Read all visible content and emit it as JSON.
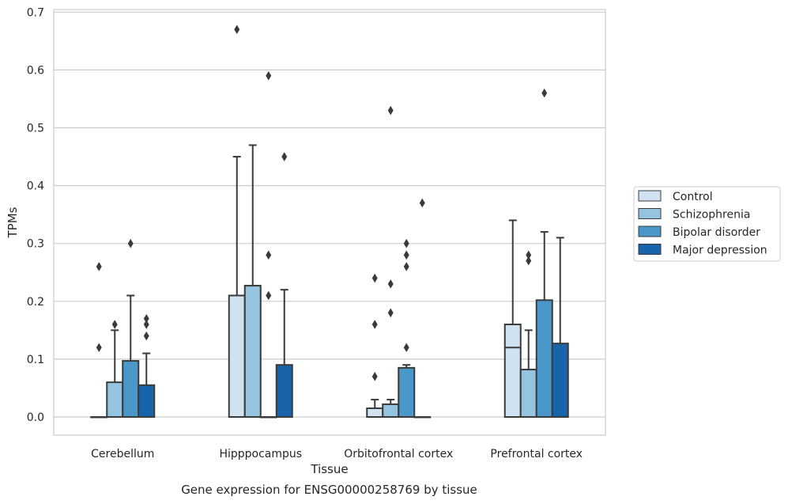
{
  "chart_data": {
    "type": "box",
    "title": "",
    "caption": "Gene expression for ENSG00000258769 by tissue",
    "xlabel": "Tissue",
    "ylabel": "TPMs",
    "ylim": [
      -0.032,
      0.705
    ],
    "yticks": [
      0.0,
      0.1,
      0.2,
      0.3,
      0.4,
      0.5,
      0.6,
      0.7
    ],
    "ytick_labels": [
      "0.0",
      "0.1",
      "0.2",
      "0.3",
      "0.4",
      "0.5",
      "0.6",
      "0.7"
    ],
    "grid": true,
    "legend_position": "right",
    "categories": [
      "Cerebellum",
      "Hipppocampus",
      "Orbitofrontal cortex",
      "Prefrontal cortex"
    ],
    "series": [
      {
        "name": "Control",
        "color": "#d0e1f2",
        "boxes": [
          {
            "q1": 0.0,
            "median": 0.0,
            "q3": 0.0,
            "whislo": 0.0,
            "whishi": 0.0,
            "fliers": [
              0.26,
              0.12
            ]
          },
          {
            "q1": 0.0,
            "median": 0.0,
            "q3": 0.21,
            "whislo": 0.0,
            "whishi": 0.45,
            "fliers": [
              0.67
            ]
          },
          {
            "q1": 0.0,
            "median": 0.0,
            "q3": 0.015,
            "whislo": 0.0,
            "whishi": 0.03,
            "fliers": [
              0.24,
              0.16,
              0.07
            ]
          },
          {
            "q1": 0.0,
            "median": 0.12,
            "q3": 0.16,
            "whislo": 0.0,
            "whishi": 0.34,
            "fliers": []
          }
        ]
      },
      {
        "name": "Schizophrenia",
        "color": "#94c4df",
        "boxes": [
          {
            "q1": 0.0,
            "median": 0.0,
            "q3": 0.06,
            "whislo": 0.0,
            "whishi": 0.15,
            "fliers": [
              0.16
            ]
          },
          {
            "q1": 0.0,
            "median": 0.0,
            "q3": 0.227,
            "whislo": 0.0,
            "whishi": 0.47,
            "fliers": []
          },
          {
            "q1": 0.0,
            "median": 0.0,
            "q3": 0.022,
            "whislo": 0.0,
            "whishi": 0.03,
            "fliers": [
              0.53,
              0.23,
              0.18
            ]
          },
          {
            "q1": 0.0,
            "median": 0.0,
            "q3": 0.082,
            "whislo": 0.0,
            "whishi": 0.15,
            "fliers": [
              0.28,
              0.27
            ]
          }
        ]
      },
      {
        "name": "Bipolar disorder",
        "color": "#4a98c9",
        "boxes": [
          {
            "q1": 0.0,
            "median": 0.0,
            "q3": 0.097,
            "whislo": 0.0,
            "whishi": 0.21,
            "fliers": [
              0.3
            ]
          },
          {
            "q1": 0.0,
            "median": 0.0,
            "q3": 0.0,
            "whislo": 0.0,
            "whishi": 0.0,
            "fliers": [
              0.59,
              0.28,
              0.21
            ]
          },
          {
            "q1": 0.0,
            "median": 0.0,
            "q3": 0.085,
            "whislo": 0.0,
            "whishi": 0.09,
            "fliers": [
              0.3,
              0.28,
              0.26,
              0.12
            ]
          },
          {
            "q1": 0.0,
            "median": 0.0,
            "q3": 0.202,
            "whislo": 0.0,
            "whishi": 0.32,
            "fliers": [
              0.56
            ]
          }
        ]
      },
      {
        "name": "Major depression",
        "color": "#1764ab",
        "boxes": [
          {
            "q1": 0.0,
            "median": 0.0,
            "q3": 0.055,
            "whislo": 0.0,
            "whishi": 0.11,
            "fliers": [
              0.17,
              0.16,
              0.14
            ]
          },
          {
            "q1": 0.0,
            "median": 0.0,
            "q3": 0.09,
            "whislo": 0.0,
            "whishi": 0.22,
            "fliers": [
              0.45
            ]
          },
          {
            "q1": 0.0,
            "median": 0.0,
            "q3": 0.0,
            "whislo": 0.0,
            "whishi": 0.0,
            "fliers": [
              0.37
            ]
          },
          {
            "q1": 0.0,
            "median": 0.0,
            "q3": 0.127,
            "whislo": 0.0,
            "whishi": 0.31,
            "fliers": []
          }
        ]
      }
    ]
  }
}
